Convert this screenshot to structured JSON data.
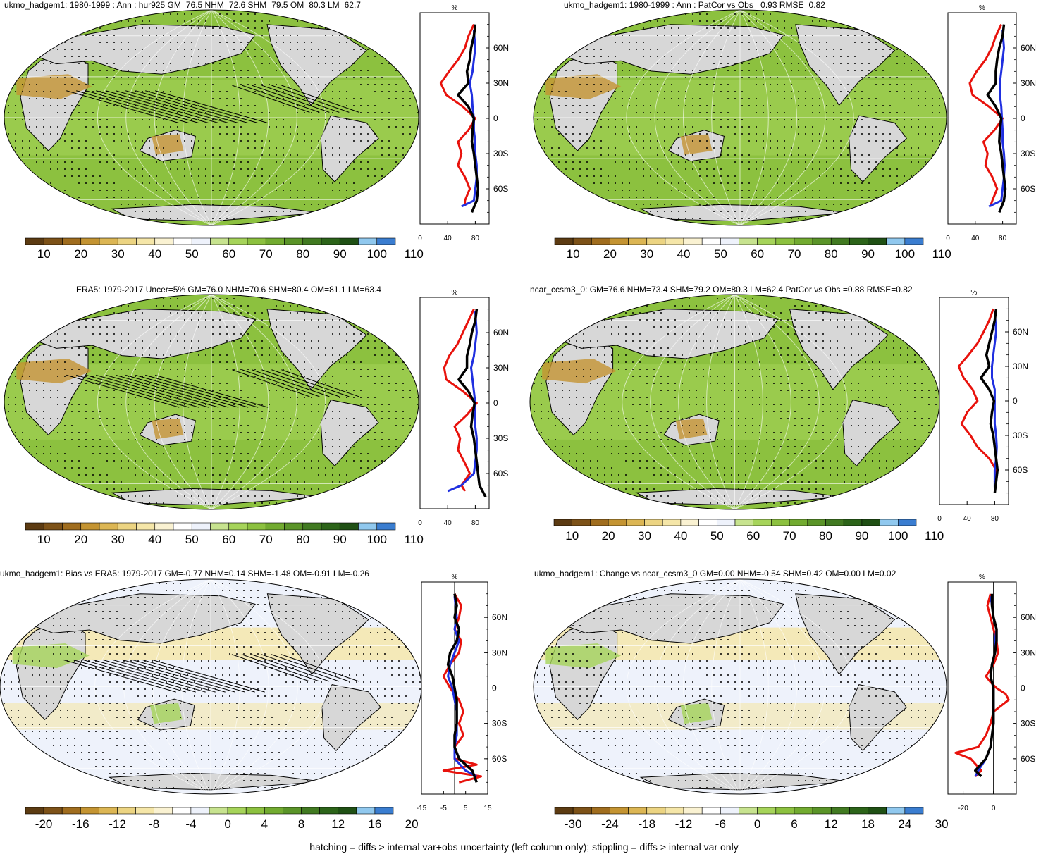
{
  "footer": "hatching = diffs > internal var+obs uncertainty (left column only); stippling = diffs > internal var only",
  "colors": {
    "land_mask": "#d7d7d7",
    "obs_line": "#e8120c",
    "model_line": "#1f2fe0",
    "ref_line": "#000000"
  },
  "colorbar_abs": [
    "#5c3b12",
    "#7d5218",
    "#a06d1e",
    "#c49432",
    "#dcb654",
    "#ecd482",
    "#f5e6a8",
    "#faf2d2",
    "#ffffff",
    "#eef2fb",
    "#c7e38f",
    "#a6d45a",
    "#8cc13f",
    "#72ab30",
    "#5a9428",
    "#417a21",
    "#2c6419",
    "#1f5014",
    "#90c8ee",
    "#3a7dd0"
  ],
  "colorbar_div": [
    "#5c3b12",
    "#7d5218",
    "#a06d1e",
    "#c49432",
    "#dcb654",
    "#ecd482",
    "#f5e6a8",
    "#faf2d2",
    "#ffffff",
    "#eef2fb",
    "#c7e38f",
    "#a6d45a",
    "#8cc13f",
    "#72ab30",
    "#5a9428",
    "#417a21",
    "#2c6419",
    "#1f5014",
    "#90c8ee",
    "#3a7dd0"
  ],
  "panels": [
    {
      "title": "ukmo_hadgem1: 1980-1999 : Ann : hur925 GM=76.5 NHM=72.6 SHM=79.5 OM=80.3 LM=62.7",
      "theme": "abs",
      "hatching": true,
      "cb_labels": [
        "10",
        "20",
        "30",
        "40",
        "50",
        "60",
        "70",
        "80",
        "90",
        "100",
        "110"
      ],
      "zonal": {
        "unit": "%",
        "lat_labels": [
          "60N",
          "30N",
          "0",
          "30S",
          "60S"
        ],
        "x_labels": [
          "0",
          "40",
          "80"
        ],
        "xlim": [
          0,
          100
        ],
        "series": [
          {
            "role": "obs",
            "lat": [
              80,
              70,
              60,
              50,
              40,
              30,
              20,
              10,
              0,
              -10,
              -20,
              -30,
              -40,
              -50,
              -60,
              -70,
              -75
            ],
            "val": [
              78,
              70,
              65,
              55,
              42,
              30,
              38,
              62,
              80,
              70,
              55,
              60,
              55,
              65,
              72,
              65,
              65
            ]
          },
          {
            "role": "model",
            "lat": [
              75,
              60,
              50,
              40,
              30,
              20,
              10,
              0,
              -10,
              -20,
              -30,
              -40,
              -50,
              -60,
              -70,
              -75
            ],
            "val": [
              78,
              80,
              78,
              76,
              72,
              75,
              76,
              78,
              78,
              80,
              80,
              82,
              82,
              80,
              78,
              60
            ]
          },
          {
            "role": "ref",
            "lat": [
              80,
              70,
              60,
              50,
              40,
              30,
              20,
              10,
              0,
              -10,
              -20,
              -30,
              -40,
              -50,
              -60,
              -70,
              -80
            ],
            "val": [
              80,
              78,
              74,
              72,
              68,
              70,
              55,
              70,
              78,
              76,
              75,
              78,
              80,
              82,
              84,
              82,
              75
            ]
          }
        ]
      }
    },
    {
      "title": "ukmo_hadgem1: 1980-1999 : Ann : PatCor vs Obs =0.93 RMSE=0.82",
      "theme": "abs",
      "hatching": false,
      "cb_labels": [
        "10",
        "20",
        "30",
        "40",
        "50",
        "60",
        "70",
        "80",
        "90",
        "100",
        "110"
      ],
      "zonal": {
        "unit": "%",
        "lat_labels": [
          "60N",
          "30N",
          "0",
          "30S",
          "60S"
        ],
        "x_labels": [
          "0",
          "40",
          "80"
        ],
        "xlim": [
          0,
          100
        ],
        "series": [
          {
            "role": "obs",
            "lat": [
              80,
              70,
              60,
              50,
              40,
              30,
              20,
              10,
              0,
              -10,
              -20,
              -30,
              -40,
              -50,
              -60,
              -70,
              -75
            ],
            "val": [
              78,
              70,
              64,
              55,
              42,
              32,
              36,
              60,
              80,
              68,
              52,
              58,
              55,
              65,
              72,
              65,
              62
            ]
          },
          {
            "role": "model",
            "lat": [
              75,
              60,
              50,
              40,
              30,
              20,
              10,
              0,
              -10,
              -20,
              -30,
              -40,
              -50,
              -60,
              -70,
              -75
            ],
            "val": [
              80,
              82,
              80,
              78,
              76,
              76,
              78,
              79,
              80,
              80,
              82,
              83,
              82,
              80,
              78,
              60
            ]
          },
          {
            "role": "ref",
            "lat": [
              80,
              70,
              60,
              50,
              40,
              30,
              20,
              10,
              0,
              -10,
              -20,
              -30,
              -40,
              -50,
              -60,
              -70,
              -80
            ],
            "val": [
              82,
              80,
              75,
              72,
              70,
              70,
              58,
              70,
              78,
              76,
              75,
              78,
              80,
              82,
              84,
              82,
              75
            ]
          }
        ]
      }
    },
    {
      "title": "ERA5: 1979-2017 Uncer=5% GM=76.0 NHM=70.6 SHM=80.4 OM=81.1 LM=63.4",
      "theme": "abs",
      "hatching": true,
      "cb_labels": [
        "10",
        "20",
        "30",
        "40",
        "50",
        "60",
        "70",
        "80",
        "90",
        "100",
        "110"
      ],
      "zonal": {
        "unit": "%",
        "lat_labels": [
          "60N",
          "30N",
          "0",
          "30S",
          "60S"
        ],
        "x_labels": [
          "0",
          "40",
          "80"
        ],
        "xlim": [
          0,
          100
        ],
        "series": [
          {
            "role": "obs",
            "lat": [
              80,
              70,
              60,
              50,
              40,
              30,
              20,
              10,
              0,
              -10,
              -20,
              -30,
              -40,
              -50,
              -60,
              -70,
              -75
            ],
            "val": [
              78,
              70,
              62,
              54,
              42,
              35,
              38,
              62,
              82,
              68,
              50,
              58,
              55,
              64,
              72,
              60,
              65
            ]
          },
          {
            "role": "model",
            "lat": [
              78,
              60,
              50,
              40,
              30,
              20,
              10,
              0,
              -10,
              -20,
              -30,
              -40,
              -50,
              -60,
              -70,
              -75
            ],
            "val": [
              80,
              82,
              80,
              78,
              74,
              76,
              78,
              80,
              80,
              80,
              82,
              82,
              80,
              78,
              60,
              40
            ]
          },
          {
            "role": "ref",
            "lat": [
              80,
              70,
              60,
              50,
              40,
              30,
              20,
              10,
              0,
              -10,
              -20,
              -30,
              -40,
              -50,
              -60,
              -70,
              -80
            ],
            "val": [
              82,
              80,
              75,
              72,
              68,
              68,
              56,
              70,
              79,
              76,
              74,
              78,
              80,
              82,
              84,
              86,
              95
            ]
          }
        ]
      }
    },
    {
      "title": "ncar_ccsm3_0: GM=76.6 NHM=73.4 SHM=79.2 OM=80.3 LM=62.4 PatCor vs Obs =0.88 RMSE=0.82",
      "theme": "abs",
      "hatching": false,
      "cb_labels": [
        "10",
        "20",
        "30",
        "40",
        "50",
        "60",
        "70",
        "80",
        "90",
        "100",
        "110"
      ],
      "zonal": {
        "unit": "%",
        "lat_labels": [
          "60N",
          "30N",
          "0",
          "30S",
          "60S"
        ],
        "x_labels": [
          "0",
          "40",
          "80"
        ],
        "xlim": [
          0,
          100
        ],
        "series": [
          {
            "role": "obs",
            "lat": [
              80,
              70,
              60,
              50,
              40,
              30,
              20,
              10,
              0,
              -10,
              -20,
              -30,
              -40,
              -50,
              -60,
              -70,
              -75
            ],
            "val": [
              78,
              72,
              64,
              55,
              42,
              28,
              35,
              48,
              55,
              40,
              32,
              45,
              55,
              72,
              82,
              80,
              82
            ]
          },
          {
            "role": "model",
            "lat": [
              78,
              60,
              50,
              40,
              30,
              20,
              10,
              0,
              -10,
              -20,
              -30,
              -40,
              -50,
              -60,
              -70,
              -75
            ],
            "val": [
              80,
              82,
              80,
              78,
              76,
              76,
              80,
              80,
              80,
              80,
              82,
              83,
              82,
              80,
              80,
              80
            ]
          },
          {
            "role": "ref",
            "lat": [
              80,
              70,
              60,
              50,
              40,
              30,
              20,
              10,
              0,
              -10,
              -20,
              -30,
              -40,
              -50,
              -60,
              -70,
              -80
            ],
            "val": [
              82,
              80,
              76,
              72,
              68,
              72,
              60,
              72,
              79,
              76,
              74,
              78,
              80,
              82,
              84,
              82,
              80
            ]
          }
        ]
      }
    },
    {
      "title": "ukmo_hadgem1: Bias vs ERA5: 1979-2017 GM=-0.77 NHM=0.14 SHM=-1.48 OM=-0.91 LM=-0.26",
      "theme": "div",
      "hatching": true,
      "cb_labels": [
        "-20",
        "-16",
        "-12",
        "-8",
        "-4",
        "0",
        "4",
        "8",
        "12",
        "16",
        "20"
      ],
      "zonal": {
        "unit": "%",
        "lat_labels": [
          "60N",
          "30N",
          "0",
          "30S",
          "60S"
        ],
        "x_labels": [
          "-15",
          "-5",
          "5",
          "15"
        ],
        "xlim": [
          -15,
          15
        ],
        "series": [
          {
            "role": "obs",
            "lat": [
              80,
              70,
              60,
              50,
              40,
              30,
              20,
              10,
              0,
              -10,
              -20,
              -30,
              -40,
              -50,
              -60,
              -65,
              -70,
              -75,
              -80
            ],
            "val": [
              0,
              3,
              2,
              0,
              3,
              2,
              -2,
              -5,
              -2,
              2,
              4,
              2,
              4,
              0,
              0,
              10,
              -5,
              12,
              2
            ]
          },
          {
            "role": "model",
            "lat": [
              78,
              60,
              50,
              40,
              30,
              20,
              10,
              0,
              -10,
              -20,
              -30,
              -40,
              -50,
              -60,
              -70,
              -75
            ],
            "val": [
              0,
              1,
              0,
              2,
              0,
              -2,
              -3,
              -1,
              0,
              1,
              1,
              1,
              0,
              0,
              5,
              10
            ]
          },
          {
            "role": "ref",
            "lat": [
              80,
              70,
              60,
              50,
              40,
              30,
              20,
              10,
              0,
              -10,
              -20,
              -30,
              -40,
              -50,
              -60,
              -70,
              -80
            ],
            "val": [
              0,
              1,
              0,
              2,
              1,
              -2,
              -3,
              -1,
              0,
              1,
              1,
              1,
              0,
              0,
              2,
              8,
              10
            ]
          }
        ]
      }
    },
    {
      "title": "ukmo_hadgem1: Change vs ncar_ccsm3_0 GM=0.00 NHM=-0.54 SHM=0.42 OM=0.00 LM=0.02",
      "theme": "div",
      "hatching": false,
      "cb_labels": [
        "-30",
        "-24",
        "-18",
        "-12",
        "-6",
        "0",
        "6",
        "12",
        "18",
        "24",
        "30"
      ],
      "zonal": {
        "unit": "%",
        "lat_labels": [
          "60N",
          "30N",
          "0",
          "30S",
          "60S"
        ],
        "x_labels": [
          "-20",
          "0"
        ],
        "xlim": [
          -30,
          15
        ],
        "series": [
          {
            "role": "obs",
            "lat": [
              80,
              70,
              60,
              50,
              40,
              30,
              20,
              10,
              5,
              0,
              -5,
              -10,
              -20,
              -30,
              -40,
              -50,
              -55,
              -60,
              -70,
              -75
            ],
            "val": [
              -2,
              -4,
              -2,
              0,
              2,
              3,
              0,
              -5,
              -2,
              2,
              8,
              10,
              0,
              -2,
              -5,
              -10,
              -25,
              -15,
              -8,
              -12
            ]
          },
          {
            "role": "model",
            "lat": [
              78,
              70,
              60,
              50,
              40,
              30,
              20,
              10,
              0,
              -10,
              -20,
              -30,
              -40,
              -50,
              -60,
              -70,
              -75
            ],
            "val": [
              -2,
              -1,
              0,
              2,
              1,
              1,
              -1,
              -2,
              0,
              0,
              0,
              0,
              -1,
              -2,
              -5,
              -10,
              -12
            ]
          },
          {
            "role": "ref",
            "lat": [
              80,
              70,
              60,
              50,
              40,
              30,
              20,
              10,
              0,
              -10,
              -20,
              -30,
              -40,
              -50,
              -60,
              -70,
              -75
            ],
            "val": [
              -1,
              -1,
              0,
              2,
              2,
              1,
              -1,
              -2,
              0,
              0,
              0,
              0,
              -1,
              -2,
              -5,
              -12,
              -8
            ]
          }
        ]
      }
    }
  ]
}
